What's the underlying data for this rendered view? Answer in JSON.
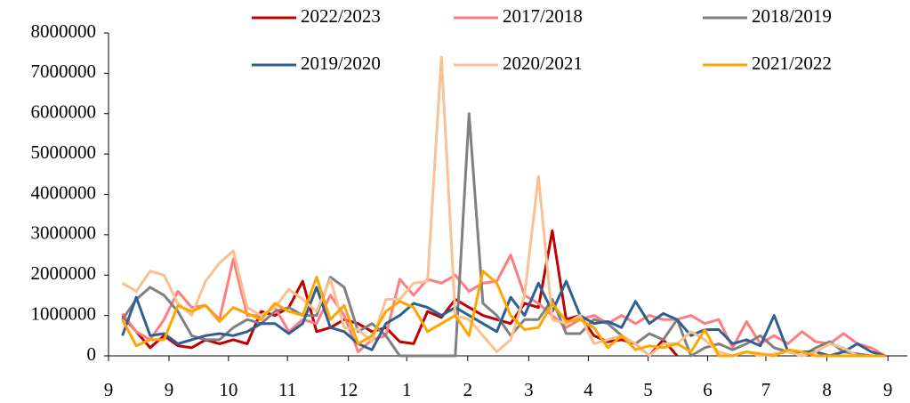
{
  "chart_data": {
    "type": "line",
    "x": [
      1,
      2,
      3,
      4,
      5,
      6,
      7,
      8,
      9,
      10,
      11,
      12,
      13,
      14,
      15,
      16,
      17,
      18,
      19,
      20,
      21,
      22,
      23,
      24,
      25,
      26,
      27,
      28,
      29,
      30,
      31,
      32,
      33,
      34,
      35,
      36,
      37,
      38,
      39,
      40,
      41,
      42,
      43,
      44,
      45,
      46,
      47,
      48,
      49,
      50,
      51,
      52,
      53,
      54,
      55,
      56
    ],
    "xlim": [
      0,
      57.6
    ],
    "xticks": [
      {
        "value": 0,
        "label": "9"
      },
      {
        "value": 4.36,
        "label": "9"
      },
      {
        "value": 8.65,
        "label": "10"
      },
      {
        "value": 12.9,
        "label": "11"
      },
      {
        "value": 17.3,
        "label": "12"
      },
      {
        "value": 21.5,
        "label": "1"
      },
      {
        "value": 25.9,
        "label": "2"
      },
      {
        "value": 30.3,
        "label": "3"
      },
      {
        "value": 34.6,
        "label": "4"
      },
      {
        "value": 38.9,
        "label": "5"
      },
      {
        "value": 43.2,
        "label": "6"
      },
      {
        "value": 47.4,
        "label": "7"
      },
      {
        "value": 51.8,
        "label": "8"
      },
      {
        "value": 56.2,
        "label": "9"
      }
    ],
    "ylim": [
      0,
      8000000
    ],
    "yticks": [
      0,
      1000000,
      2000000,
      3000000,
      4000000,
      5000000,
      6000000,
      7000000,
      8000000
    ],
    "series": [
      {
        "name": "2022/2023",
        "color": "#c00000",
        "values": [
          1000000,
          600000,
          200000,
          500000,
          250000,
          200000,
          400000,
          300000,
          400000,
          300000,
          1100000,
          1000000,
          1200000,
          1850000,
          600000,
          700000,
          900000,
          800000,
          600000,
          700000,
          350000,
          300000,
          1100000,
          950000,
          1400000,
          1200000,
          1000000,
          900000,
          800000,
          1300000,
          1200000,
          3100000,
          900000,
          1000000,
          500000,
          350000,
          400000,
          300000,
          0,
          400000,
          0,
          null,
          null,
          null,
          null,
          null,
          null,
          null,
          null,
          null,
          null,
          null,
          null,
          null,
          null,
          null
        ]
      },
      {
        "name": "2017/2018",
        "color": "#ff7c80",
        "values": [
          1050000,
          600000,
          400000,
          900000,
          1600000,
          1200000,
          1250000,
          900000,
          2400000,
          1000000,
          1000000,
          1200000,
          600000,
          900000,
          800000,
          1500000,
          1000000,
          100000,
          400000,
          500000,
          1900000,
          1500000,
          1900000,
          1800000,
          2000000,
          1600000,
          1800000,
          1850000,
          2500000,
          1500000,
          1300000,
          1000000,
          700000,
          900000,
          1000000,
          800000,
          1000000,
          800000,
          1000000,
          900000,
          900000,
          1000000,
          800000,
          900000,
          200000,
          850000,
          300000,
          500000,
          300000,
          600000,
          350000,
          300000,
          550000,
          300000,
          200000,
          0
        ]
      },
      {
        "name": "2018/2019",
        "color": "#808080",
        "values": [
          900000,
          1400000,
          1700000,
          1500000,
          1100000,
          500000,
          400000,
          400000,
          700000,
          900000,
          800000,
          1100000,
          1200000,
          1000000,
          1000000,
          1950000,
          1700000,
          600000,
          800000,
          500000,
          0,
          0,
          0,
          0,
          0,
          6000000,
          1300000,
          1000000,
          500000,
          900000,
          900000,
          1400000,
          550000,
          550000,
          900000,
          800000,
          500000,
          300000,
          550000,
          400000,
          900000,
          0,
          200000,
          300000,
          150000,
          300000,
          500000,
          200000,
          100000,
          0,
          200000,
          350000,
          100000,
          50000,
          0,
          0
        ]
      },
      {
        "name": "2019/2020",
        "color": "#305f91",
        "values": [
          500000,
          1450000,
          500000,
          550000,
          300000,
          400000,
          500000,
          550000,
          500000,
          600000,
          800000,
          800000,
          550000,
          800000,
          1700000,
          700000,
          600000,
          300000,
          150000,
          800000,
          1000000,
          1300000,
          1200000,
          1000000,
          1200000,
          1000000,
          800000,
          600000,
          1450000,
          1000000,
          1800000,
          1100000,
          1850000,
          1000000,
          800000,
          850000,
          700000,
          1350000,
          800000,
          1050000,
          900000,
          500000,
          650000,
          650000,
          300000,
          400000,
          250000,
          1000000,
          100000,
          100000,
          100000,
          0,
          100000,
          300000,
          100000,
          0
        ]
      },
      {
        "name": "2020/2021",
        "color": "#fac090",
        "values": [
          1800000,
          1600000,
          2100000,
          2000000,
          1300000,
          1000000,
          1850000,
          2300000,
          2600000,
          1200000,
          1000000,
          1200000,
          1650000,
          1400000,
          1100000,
          1900000,
          700000,
          650000,
          350000,
          1400000,
          1400000,
          1800000,
          1850000,
          7400000,
          1000000,
          900000,
          500000,
          100000,
          400000,
          1500000,
          4450000,
          900000,
          800000,
          1000000,
          300000,
          400000,
          500000,
          300000,
          0,
          300000,
          300000,
          600000,
          400000,
          100000,
          0,
          100000,
          0,
          50000,
          100000,
          0,
          100000,
          300000,
          200000,
          0,
          0,
          0
        ]
      },
      {
        "name": "2021/2022",
        "color": "#ffa500",
        "values": [
          900000,
          250000,
          400000,
          400000,
          1250000,
          1100000,
          1250000,
          850000,
          1200000,
          1050000,
          900000,
          1300000,
          1100000,
          1000000,
          1950000,
          900000,
          1250000,
          300000,
          500000,
          1100000,
          1350000,
          1200000,
          600000,
          800000,
          1000000,
          500000,
          2100000,
          1800000,
          1000000,
          650000,
          700000,
          1300000,
          850000,
          900000,
          700000,
          200000,
          500000,
          150000,
          250000,
          200000,
          300000,
          100000,
          650000,
          0,
          0,
          100000,
          50000,
          0,
          150000,
          100000,
          0,
          0,
          0,
          0,
          0,
          0
        ]
      }
    ]
  }
}
